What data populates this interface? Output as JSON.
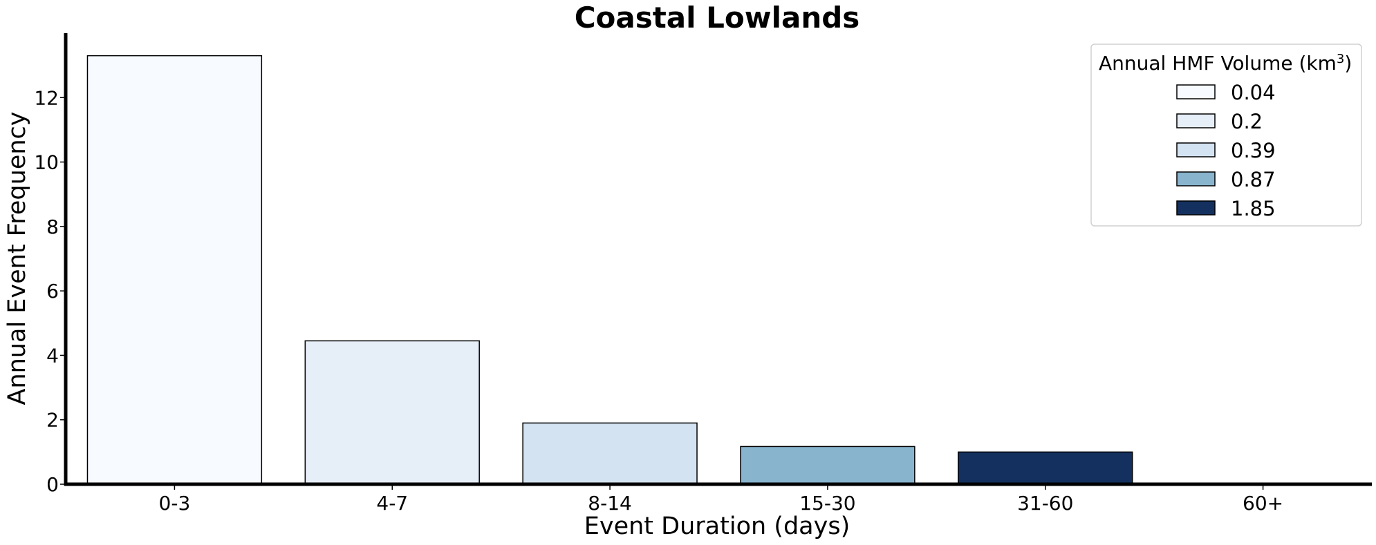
{
  "chart_data": {
    "type": "bar",
    "title": "Coastal Lowlands",
    "xlabel": "Event Duration (days)",
    "ylabel": "Annual Event Frequency",
    "categories": [
      "0-3",
      "4-7",
      "8-14",
      "15-30",
      "31-60",
      "60+"
    ],
    "values": [
      13.3,
      4.45,
      1.9,
      1.17,
      1.0,
      0
    ],
    "colors": [
      "#f7fbff",
      "#e6eef8",
      "#d4e3f1",
      "#88b4cd",
      "#14305e",
      "#ffffff"
    ],
    "ylim": [
      0,
      14
    ],
    "yticks": [
      0,
      2,
      4,
      6,
      8,
      10,
      12
    ],
    "grid": false,
    "legend": {
      "title": "Annual HMF Volume (km",
      "title_sup": "3",
      "title_end": ")",
      "placement": "top-right",
      "entries": [
        {
          "label": "0.04",
          "color": "#f7fbff"
        },
        {
          "label": "0.2",
          "color": "#e6eef8"
        },
        {
          "label": "0.39",
          "color": "#d4e3f1"
        },
        {
          "label": "0.87",
          "color": "#88b4cd"
        },
        {
          "label": "1.85",
          "color": "#14305e"
        }
      ]
    }
  }
}
